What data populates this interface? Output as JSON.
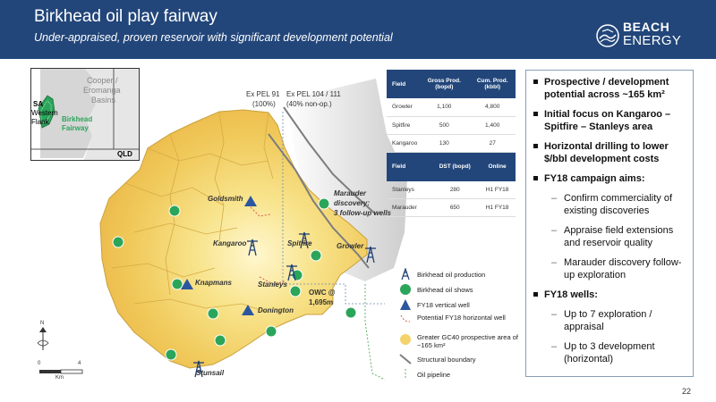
{
  "header": {
    "title": "Birkhead oil play fairway",
    "subtitle": "Under-appraised, proven reservoir with significant development potential",
    "logo_line1": "BEACH",
    "logo_line2": "ENERGY"
  },
  "colors": {
    "header_bg": "#22467a",
    "fairway_fill": "#f3d36b",
    "fairway_core": "#fff6c8",
    "shows_green": "#2aa55a",
    "vertical_well_blue": "#2b56a0",
    "fault_gray": "#888888"
  },
  "inset": {
    "sa_label": "SA",
    "western_flank": "Western",
    "flank": "Flank",
    "basin_line1": "Cooper /",
    "basin_line2": "Eromanga",
    "basin_line3": "Basins",
    "fairway_line1": "Birkhead",
    "fairway_line2": "Fairway",
    "qld_label": "QLD"
  },
  "map": {
    "permit_left_line1": "Ex PEL 91",
    "permit_left_line2": "(100%)",
    "permit_right_line1": "Ex PEL 104 / 111",
    "permit_right_line2": "(40% non-op.)",
    "goldsmith": "Goldsmith",
    "kangaroo": "Kangaroo",
    "spitfire": "Spitfire",
    "growler": "Growler",
    "marauder_line1": "Marauder",
    "marauder_line2": "discovery:",
    "marauder_line3": "3 follow-up wells",
    "knapmans": "Knapmans",
    "stanleys": "Stanleys",
    "owc_line1": "OWC @",
    "owc_line2": "1,695m",
    "donington": "Donington",
    "stunsail": "Stunsail",
    "north": "N",
    "scale_0": "0",
    "scale_4": "4",
    "scale_unit": "Km"
  },
  "table1": {
    "headers": [
      "Field",
      "Gross Prod. (bopd)",
      "Cum. Prod. (kbbl)"
    ],
    "rows": [
      [
        "Growler",
        "1,100",
        "4,800"
      ],
      [
        "Spitfire",
        "500",
        "1,400"
      ],
      [
        "Kangaroo",
        "130",
        "27"
      ]
    ]
  },
  "table2": {
    "headers": [
      "Field",
      "DST (bopd)",
      "Online"
    ],
    "rows": [
      [
        "Stanleys",
        "280",
        "H1 FY18"
      ],
      [
        "Marauder",
        "650",
        "H1 FY18"
      ]
    ]
  },
  "legend": [
    {
      "icon": "oil-production-icon",
      "label": "Birkhead oil production"
    },
    {
      "icon": "oil-shows-icon",
      "label": "Birkhead oil shows"
    },
    {
      "icon": "vertical-well-icon",
      "label": "FY18 vertical well"
    },
    {
      "icon": "horizontal-well-icon",
      "label": "Potential FY18 horizontal well"
    },
    {
      "icon": "prospective-area-icon",
      "label": "Greater GC40 prospective area of ~165 km²"
    },
    {
      "icon": "structural-boundary-icon",
      "label": "Structural boundary"
    },
    {
      "icon": "oil-pipeline-icon",
      "label": "Oil pipeline"
    }
  ],
  "bullets": {
    "b1": "Prospective / development potential across ~165 km²",
    "b2": "Initial focus on Kangaroo – Spitfire – Stanleys area",
    "b3": "Horizontal drilling to lower $/bbl development costs",
    "b4": "FY18 campaign aims:",
    "s1": "Confirm commerciality of existing discoveries",
    "s2": "Appraise field extensions and reservoir quality",
    "s3": "Marauder discovery follow-up exploration",
    "b5": "FY18 wells:",
    "s4": "Up to 7 exploration / appraisal",
    "s5": "Up to 3 development (horizontal)"
  },
  "page_number": "22"
}
